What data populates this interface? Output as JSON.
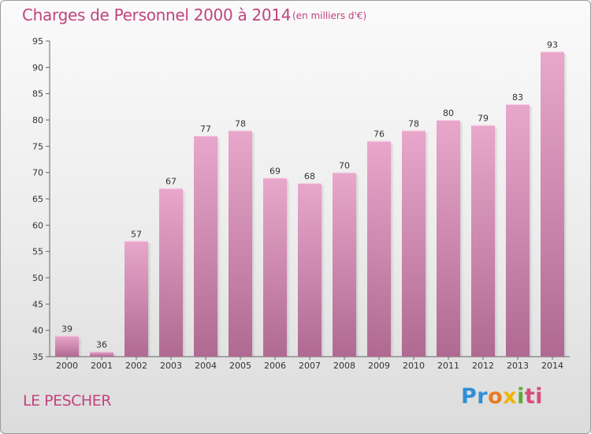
{
  "title": "Charges de Personnel 2000 à 2014",
  "subtitle": "(en milliers d'€)",
  "place": "LE PESCHER",
  "logo": {
    "p1": "Pr",
    "p2": "o",
    "p3": "x",
    "p4": "i",
    "p5": "ti"
  },
  "colors": {
    "title": "#c1447e",
    "bar_top": "#e9a7cb",
    "bar_bottom": "#b06a92"
  },
  "chart_data": {
    "type": "bar",
    "title": "Charges de Personnel 2000 à 2014",
    "subtitle": "(en milliers d'€)",
    "categories": [
      "2000",
      "2001",
      "2002",
      "2003",
      "2004",
      "2005",
      "2006",
      "2007",
      "2008",
      "2009",
      "2010",
      "2011",
      "2012",
      "2013",
      "2014"
    ],
    "values": [
      39,
      36,
      57,
      67,
      77,
      78,
      69,
      68,
      70,
      76,
      78,
      80,
      79,
      83,
      93
    ],
    "ylim": [
      35,
      95
    ],
    "yticks": [
      35,
      40,
      45,
      50,
      55,
      60,
      65,
      70,
      75,
      80,
      85,
      90,
      95
    ],
    "grid": false,
    "data_labels": true
  }
}
